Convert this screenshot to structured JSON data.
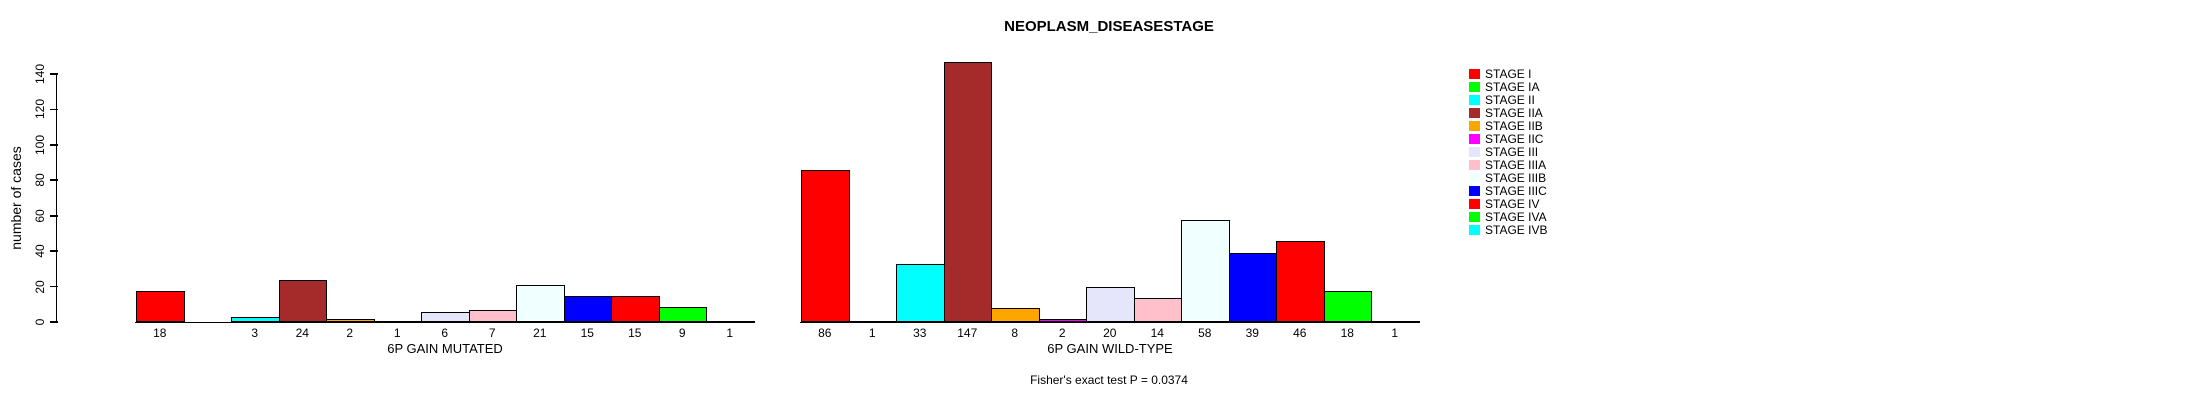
{
  "chart_data": {
    "type": "bar",
    "title": "NEOPLASM_DISEASESTAGE",
    "ylabel": "number of cases",
    "ylim": [
      0,
      140
    ],
    "yticks": [
      0,
      20,
      40,
      60,
      80,
      100,
      120,
      140
    ],
    "grid": false,
    "legend_position": "right",
    "categories": [
      "STAGE I",
      "STAGE IA",
      "STAGE II",
      "STAGE IIA",
      "STAGE IIB",
      "STAGE IIC",
      "STAGE III",
      "STAGE IIIA",
      "STAGE IIIB",
      "STAGE IIIC",
      "STAGE IV",
      "STAGE IVA",
      "STAGE IVB"
    ],
    "colors": [
      "#FF0000",
      "#00FF00",
      "#00FFFF",
      "#A52A2A",
      "#FFA500",
      "#FF00FF",
      "#E6E6FA",
      "#FFC0CB",
      "#F0FFFF",
      "#0000FF",
      "#FF0000",
      "#00FF00",
      "#00FFFF"
    ],
    "series": [
      {
        "name": "6P GAIN MUTATED",
        "values": [
          18,
          null,
          3,
          24,
          2,
          1,
          6,
          7,
          21,
          15,
          15,
          9,
          1
        ]
      },
      {
        "name": "6P GAIN WILD-TYPE",
        "values": [
          86,
          1,
          33,
          147,
          8,
          2,
          20,
          14,
          58,
          39,
          46,
          18,
          1
        ]
      }
    ],
    "annotation": "Fisher's exact test P = 0.0374"
  }
}
